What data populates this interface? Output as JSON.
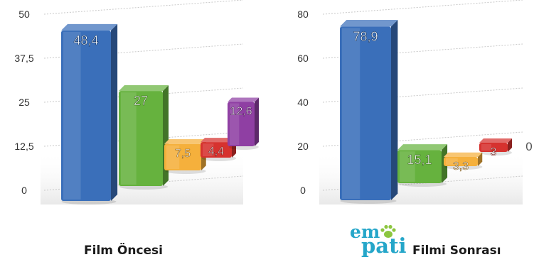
{
  "chart_data": [
    {
      "type": "bar",
      "title": "",
      "xlabel": "",
      "ylabel": "",
      "categories": [
        "",
        "",
        "",
        "",
        ""
      ],
      "values": [
        48.4,
        27,
        7.5,
        4.4,
        12.6
      ],
      "value_labels": [
        "48,4",
        "27",
        "7,5",
        "4,4",
        "12,6"
      ],
      "colors": [
        "#3a6fba",
        "#66b23e",
        "#f5b03c",
        "#d6322f",
        "#8f3fa3"
      ],
      "ylim": [
        0,
        50
      ],
      "yticks": [
        0,
        12.5,
        25,
        37.5,
        50
      ],
      "ytick_labels": [
        "0",
        "12,5",
        "25",
        "37,5",
        "50"
      ],
      "grid": true,
      "caption": "Film Öncesi"
    },
    {
      "type": "bar",
      "title": "",
      "xlabel": "",
      "ylabel": "",
      "categories": [
        "",
        "",
        "",
        "",
        ""
      ],
      "values": [
        78.9,
        15.1,
        3.3,
        3,
        0
      ],
      "value_labels": [
        "78,9",
        "15,1",
        "3,3",
        "3",
        "0"
      ],
      "colors": [
        "#3a6fba",
        "#66b23e",
        "#f5b03c",
        "#d6322f",
        "#8f3fa3"
      ],
      "ylim": [
        0,
        80
      ],
      "yticks": [
        0,
        20,
        40,
        60,
        80
      ],
      "ytick_labels": [
        "0",
        "20",
        "40",
        "60",
        "80"
      ],
      "grid": true,
      "caption": "Filmi Sonrası"
    }
  ],
  "logo": {
    "text_top": "em",
    "text_bottom": "pati",
    "color": "#25a6c9"
  }
}
